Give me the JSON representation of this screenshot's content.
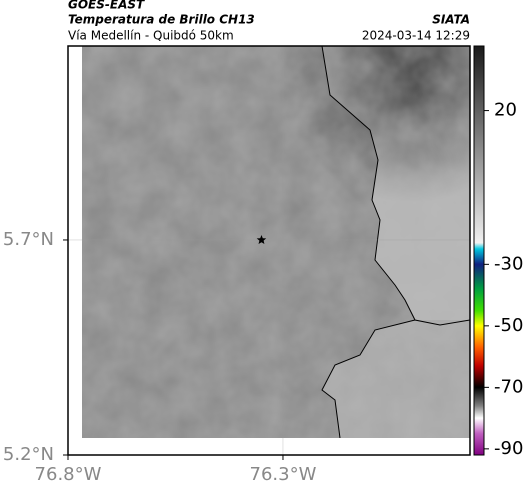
{
  "header": {
    "source": "GOES-EAST",
    "title": "Temperatura de Brillo CH13",
    "subtitle": "Vía Medellín - Quibdó 50km",
    "org": "SIATA",
    "timestamp": "2024-03-14 12:29"
  },
  "map": {
    "xlim": [
      -76.8,
      -75.865
    ],
    "ylim": [
      5.2,
      6.151
    ],
    "xticks": [
      {
        "value": -76.8,
        "label": "76.8°W"
      },
      {
        "value": -76.3,
        "label": "76.3°W"
      }
    ],
    "yticks": [
      {
        "value": 5.7,
        "label": "5.7°N"
      },
      {
        "value": 5.2,
        "label": "5.2°N"
      }
    ],
    "grid": true,
    "marker": {
      "lon": -76.35,
      "lat": 5.7
    }
  },
  "colorbar": {
    "lim": [
      -92,
      41
    ],
    "ticks": [
      20,
      -30,
      -50,
      -70,
      -90
    ],
    "stops": [
      {
        "value": 41,
        "color": "#1a1a1a"
      },
      {
        "value": -20,
        "color": "#e6e6e6"
      },
      {
        "value": -23,
        "color": "#f2f2f2"
      },
      {
        "value": -25,
        "color": "#00c8e0"
      },
      {
        "value": -30,
        "color": "#102080"
      },
      {
        "value": -38,
        "color": "#00a040"
      },
      {
        "value": -45,
        "color": "#40e000"
      },
      {
        "value": -50,
        "color": "#ffff00"
      },
      {
        "value": -57,
        "color": "#ff6000"
      },
      {
        "value": -63,
        "color": "#c00000"
      },
      {
        "value": -70,
        "color": "#000000"
      },
      {
        "value": -76,
        "color": "#808080"
      },
      {
        "value": -80,
        "color": "#ffffff"
      },
      {
        "value": -85,
        "color": "#c060c0"
      },
      {
        "value": -92,
        "color": "#800080"
      }
    ]
  }
}
